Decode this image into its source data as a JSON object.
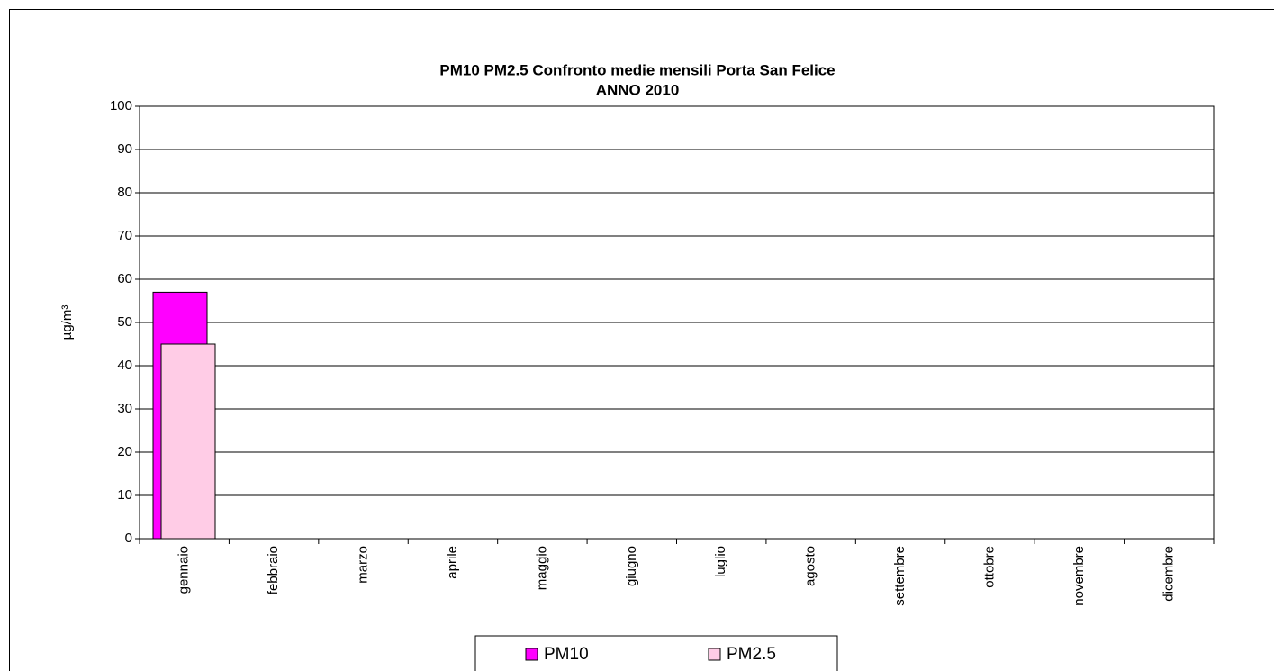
{
  "chart_data": {
    "type": "bar",
    "title": "PM10 PM2.5 Confronto medie mensili Porta San Felice",
    "subtitle": "ANNO 2010",
    "y_label": "µg/m³",
    "categories": [
      "gennaio",
      "febbraio",
      "marzo",
      "aprile",
      "maggio",
      "giugno",
      "luglio",
      "agosto",
      "settembre",
      "ottobre",
      "novembre",
      "dicembre"
    ],
    "series": [
      {
        "name": "PM10",
        "color": "#ff00ff",
        "values": [
          57,
          null,
          null,
          null,
          null,
          null,
          null,
          null,
          null,
          null,
          null,
          null
        ]
      },
      {
        "name": "PM2.5",
        "color": "#ffcce6",
        "values": [
          45,
          null,
          null,
          null,
          null,
          null,
          null,
          null,
          null,
          null,
          null,
          null
        ]
      }
    ],
    "ylim": [
      0,
      100
    ],
    "yticks": [
      0,
      10,
      20,
      30,
      40,
      50,
      60,
      70,
      80,
      90,
      100
    ],
    "grid": true,
    "legend": "bottom"
  }
}
